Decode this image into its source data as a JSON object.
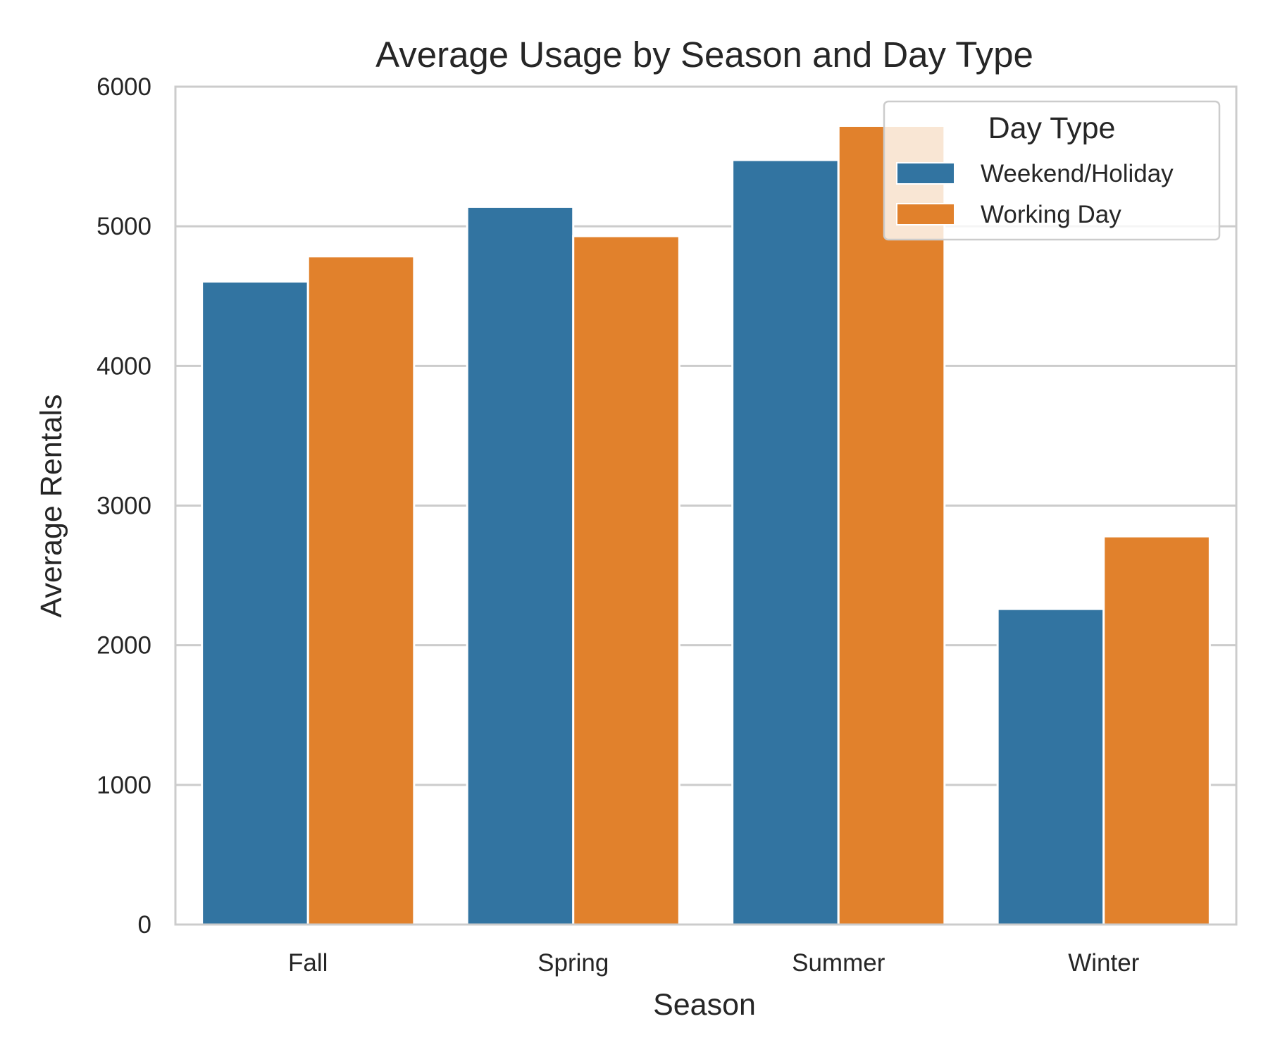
{
  "chart_data": {
    "type": "bar",
    "title": "Average Usage by Season and Day Type",
    "xlabel": "Season",
    "ylabel": "Average Rentals",
    "categories": [
      "Fall",
      "Spring",
      "Summer",
      "Winter"
    ],
    "series": [
      {
        "name": "Weekend/Holiday",
        "values": [
          4605,
          5140,
          5475,
          2260
        ],
        "color": "#3274a1"
      },
      {
        "name": "Working Day",
        "values": [
          4785,
          4930,
          5720,
          2780
        ],
        "color": "#e1812c"
      }
    ],
    "ylim": [
      0,
      6000
    ],
    "yticks": [
      0,
      1000,
      2000,
      3000,
      4000,
      5000,
      6000
    ],
    "grid": "horizontal",
    "legend": {
      "title": "Day Type",
      "position": "top-right"
    },
    "colors": {
      "grid": "#cccccc",
      "spine": "#cccccc",
      "text": "#262626"
    }
  }
}
